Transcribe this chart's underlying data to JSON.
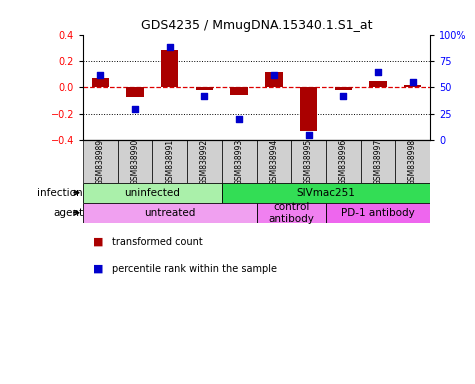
{
  "title": "GDS4235 / MmugDNA.15340.1.S1_at",
  "samples": [
    "GSM838989",
    "GSM838990",
    "GSM838991",
    "GSM838992",
    "GSM838993",
    "GSM838994",
    "GSM838995",
    "GSM838996",
    "GSM838997",
    "GSM838998"
  ],
  "transformed_count": [
    0.07,
    -0.07,
    0.28,
    -0.02,
    -0.06,
    0.12,
    -0.33,
    -0.02,
    0.05,
    0.02
  ],
  "percentile_rank": [
    62,
    30,
    88,
    42,
    20,
    62,
    5,
    42,
    65,
    55
  ],
  "ylim": [
    -0.4,
    0.4
  ],
  "yticks_left": [
    -0.4,
    -0.2,
    0.0,
    0.2,
    0.4
  ],
  "yticks_right": [
    0,
    25,
    50,
    75,
    100
  ],
  "infection_groups": [
    {
      "label": "uninfected",
      "start": 0,
      "end": 4,
      "color": "#aaf0aa"
    },
    {
      "label": "SIVmac251",
      "start": 4,
      "end": 10,
      "color": "#33dd55"
    }
  ],
  "agent_groups": [
    {
      "label": "untreated",
      "start": 0,
      "end": 5,
      "color": "#f0a0f0"
    },
    {
      "label": "control\nantibody",
      "start": 5,
      "end": 7,
      "color": "#f080f0"
    },
    {
      "label": "PD-1 antibody",
      "start": 7,
      "end": 10,
      "color": "#ee66ee"
    }
  ],
  "bar_color": "#AA0000",
  "dot_color": "#0000CC",
  "hline_color": "#dd0000",
  "grid_color": "#000000",
  "bg_color": "#ffffff",
  "infection_label": "infection",
  "agent_label": "agent",
  "legend1": "transformed count",
  "legend2": "percentile rank within the sample",
  "sample_box_color": "#d0d0d0"
}
